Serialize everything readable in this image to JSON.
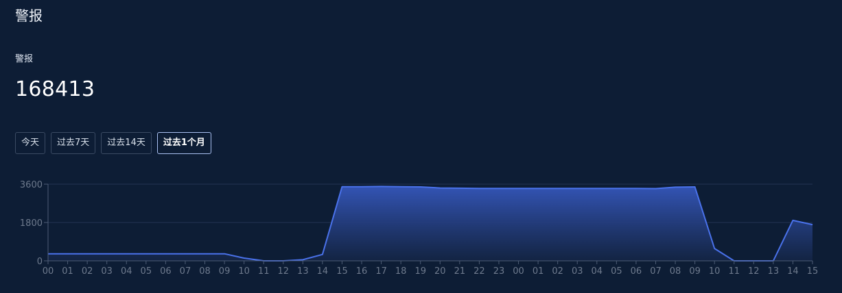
{
  "page": {
    "title": "警报"
  },
  "metric": {
    "label": "警报",
    "value": "168413"
  },
  "ranges": [
    {
      "label": "今天",
      "active": false
    },
    {
      "label": "过去7天",
      "active": false
    },
    {
      "label": "过去14天",
      "active": false
    },
    {
      "label": "过去1个月",
      "active": true
    }
  ],
  "chart_data": {
    "type": "area",
    "title": "",
    "xlabel": "",
    "ylabel": "",
    "ylim": [
      0,
      3600
    ],
    "yticks": [
      0,
      1800,
      3600
    ],
    "grid": true,
    "colors": {
      "line": "#4a72eb",
      "fill_top": "#3557bb",
      "fill_bottom": "#142545",
      "grid": "#223453",
      "axis": "#4d5c75"
    },
    "x": [
      "00",
      "01",
      "02",
      "03",
      "04",
      "05",
      "06",
      "07",
      "08",
      "09",
      "10",
      "11",
      "12",
      "13",
      "14",
      "15",
      "16",
      "17",
      "18",
      "19",
      "20",
      "21",
      "22",
      "23",
      "00",
      "01",
      "02",
      "03",
      "04",
      "05",
      "06",
      "07",
      "08",
      "09",
      "10",
      "11",
      "12",
      "13",
      "14",
      "15"
    ],
    "series": [
      {
        "values": [
          330,
          330,
          330,
          330,
          330,
          330,
          330,
          330,
          330,
          330,
          130,
          0,
          0,
          50,
          300,
          3480,
          3480,
          3490,
          3480,
          3470,
          3420,
          3410,
          3400,
          3400,
          3400,
          3400,
          3400,
          3400,
          3400,
          3400,
          3400,
          3390,
          3460,
          3470,
          580,
          0,
          0,
          0,
          1900,
          1700
        ]
      }
    ]
  }
}
